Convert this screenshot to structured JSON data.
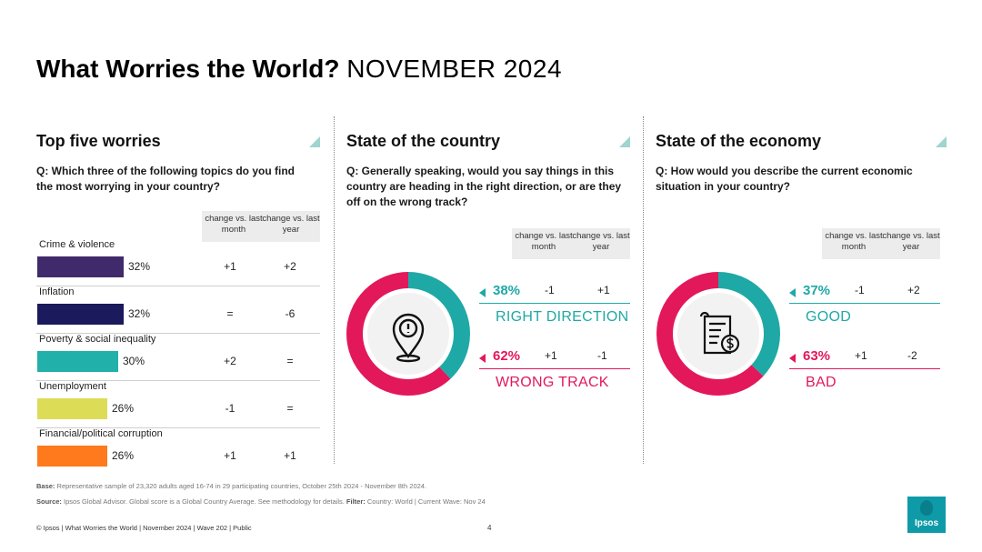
{
  "title": {
    "bold": "What Worries the World?",
    "light": "NOVEMBER 2024"
  },
  "colors": {
    "teal": "#1fa9a6",
    "crimson": "#e2185b",
    "corner": "#9fd4cf",
    "header_bg": "#ececec"
  },
  "worries": {
    "heading": "Top five worries",
    "question": "Q: Which three of the following topics do you find the most worrying in your country?",
    "col_month": "change vs. last month",
    "col_year": "change vs. last year",
    "items": [
      {
        "label": "Crime & violence",
        "pct": "32%",
        "value": 32,
        "month": "+1",
        "year": "+2",
        "color": "#412a6b"
      },
      {
        "label": "Inflation",
        "pct": "32%",
        "value": 32,
        "month": "=",
        "year": "-6",
        "color": "#1b1a5c"
      },
      {
        "label": "Poverty & social inequality",
        "pct": "30%",
        "value": 30,
        "month": "+2",
        "year": "=",
        "color": "#22b0ab"
      },
      {
        "label": "Unemployment",
        "pct": "26%",
        "value": 26,
        "month": "-1",
        "year": "=",
        "color": "#dcdc57"
      },
      {
        "label": "Financial/political corruption",
        "pct": "26%",
        "value": 26,
        "month": "+1",
        "year": "+1",
        "color": "#ff7a1c"
      }
    ]
  },
  "country": {
    "heading": "State of the country",
    "question": "Q: Generally speaking, would you say things in this country are heading in the right direction, or are they off on the wrong track?",
    "col_month": "change vs. last month",
    "col_year": "change vs. last year",
    "icon": "location-alert-icon",
    "positive": {
      "pct": "38%",
      "value": 38,
      "month": "-1",
      "year": "+1",
      "name": "RIGHT DIRECTION"
    },
    "negative": {
      "pct": "62%",
      "value": 62,
      "month": "+1",
      "year": "-1",
      "name": "WRONG TRACK"
    }
  },
  "economy": {
    "heading": "State of the economy",
    "question": "Q: How would you describe the current economic situation in your country?",
    "col_month": "change vs. last month",
    "col_year": "change vs. last year",
    "icon": "receipt-dollar-icon",
    "positive": {
      "pct": "37%",
      "value": 37,
      "month": "-1",
      "year": "+2",
      "name": "GOOD"
    },
    "negative": {
      "pct": "63%",
      "value": 63,
      "month": "+1",
      "year": "-2",
      "name": "BAD"
    }
  },
  "footer": {
    "base_label": "Base:",
    "base_text": "Representative sample of 23,320 adults aged 16-74 in 29 participating countries, October 25th 2024 - November 8th 2024.",
    "source_label": "Source:",
    "source_text": "Ipsos Global Advisor. Global score is a Global Country Average. See methodology for details.",
    "filter_label": "Filter:",
    "filter_text": "Country: World | Current Wave: Nov 24",
    "copyright": "© Ipsos | What Worries the World | November 2024 | Wave 202 | Public",
    "page": "4",
    "logo": "Ipsos"
  }
}
